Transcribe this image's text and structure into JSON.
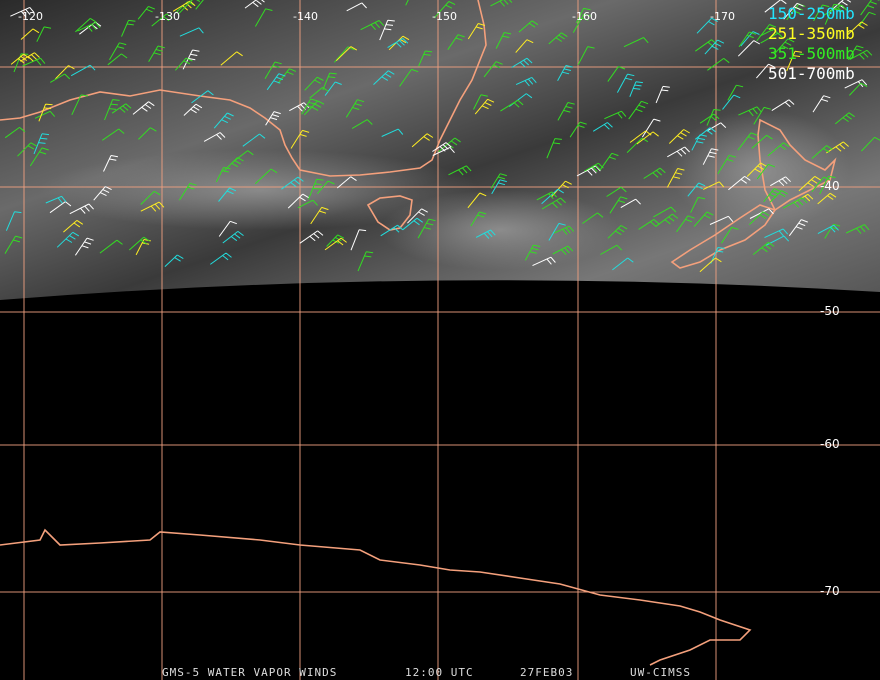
{
  "map": {
    "longitude_labels": [
      "-120",
      "-130",
      "-140",
      "-150",
      "-160",
      "-170"
    ],
    "latitude_labels": [
      "-40",
      "-50",
      "-60",
      "-70"
    ],
    "legend": [
      "150-250mb",
      "251-350mb",
      "351-500mb",
      "501-700mb"
    ],
    "footer": [
      "GMS-5 WATER VAPOR WINDS",
      "12:00 UTC",
      "27FEB03",
      "UW-CIMSS"
    ]
  }
}
